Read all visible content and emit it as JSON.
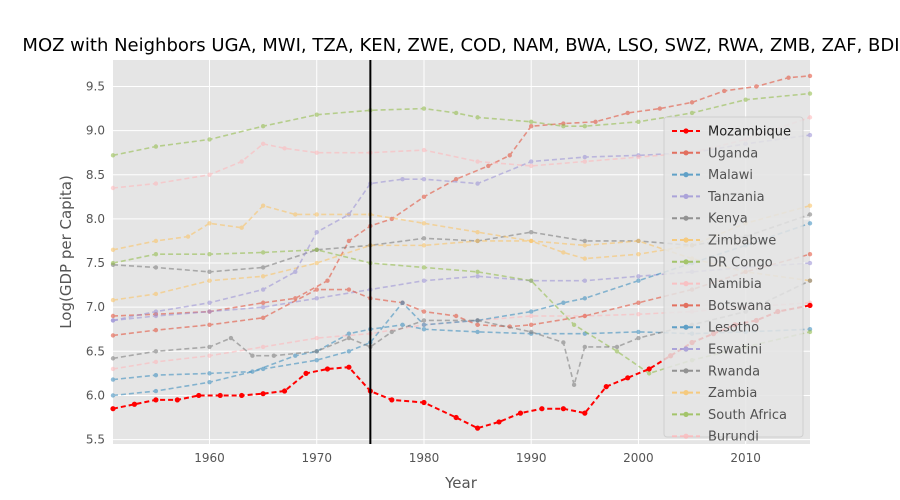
{
  "chart_data": {
    "type": "line",
    "title": "MOZ with Neighbors UGA, MWI, TZA, KEN, ZWE, COD, NAM, BWA, LSO, SWZ, RWA, ZMB, ZAF, BDI",
    "xlabel": "Year",
    "ylabel": "Log(GDP per Capita)",
    "xlim": [
      1951,
      2016
    ],
    "ylim": [
      5.45,
      9.8
    ],
    "xticks": [
      1960,
      1970,
      1980,
      1990,
      2000,
      2010
    ],
    "yticks": [
      5.5,
      6.0,
      6.5,
      7.0,
      7.5,
      8.0,
      8.5,
      9.0,
      9.5
    ],
    "vline": 1975,
    "grid": true,
    "legend_position": "right",
    "series": [
      {
        "name": "Mozambique",
        "color": "#ff0000",
        "highlight": true,
        "x": [
          1951,
          1953,
          1955,
          1957,
          1959,
          1961,
          1963,
          1965,
          1967,
          1969,
          1971,
          1973,
          1975,
          1977,
          1980,
          1983,
          1985,
          1987,
          1989,
          1991,
          1993,
          1995,
          1997,
          1999,
          2001,
          2003,
          2005,
          2007,
          2009,
          2011,
          2013,
          2016
        ],
        "y": [
          5.85,
          5.9,
          5.95,
          5.95,
          6.0,
          6.0,
          6.0,
          6.02,
          6.05,
          6.25,
          6.3,
          6.32,
          6.05,
          5.95,
          5.92,
          5.75,
          5.63,
          5.7,
          5.8,
          5.85,
          5.85,
          5.8,
          6.1,
          6.2,
          6.3,
          6.45,
          6.6,
          6.7,
          6.8,
          6.85,
          6.95,
          7.02
        ]
      },
      {
        "name": "Uganda",
        "color": "#e24a33",
        "x": [
          1951,
          1955,
          1960,
          1965,
          1968,
          1971,
          1973,
          1975,
          1977,
          1980,
          1983,
          1986,
          1988,
          1990,
          1993,
          1996,
          1999,
          2002,
          2005,
          2008,
          2011,
          2014,
          2016
        ],
        "y": [
          6.9,
          6.92,
          6.95,
          7.05,
          7.1,
          7.3,
          7.75,
          7.92,
          8.0,
          8.25,
          8.45,
          8.6,
          8.72,
          9.05,
          9.08,
          9.1,
          9.2,
          9.25,
          9.32,
          9.45,
          9.5,
          9.6,
          9.62
        ]
      },
      {
        "name": "Malawi",
        "color": "#348abd",
        "x": [
          1951,
          1955,
          1960,
          1964,
          1968,
          1970,
          1973,
          1975,
          1978,
          1980,
          1985,
          1990,
          1995,
          2000,
          2005,
          2010,
          2016
        ],
        "y": [
          6.18,
          6.23,
          6.25,
          6.27,
          6.45,
          6.5,
          6.7,
          6.75,
          6.8,
          6.75,
          6.72,
          6.7,
          6.7,
          6.72,
          6.7,
          6.72,
          6.75
        ]
      },
      {
        "name": "Tanzania",
        "color": "#988ed5",
        "x": [
          1951,
          1955,
          1960,
          1965,
          1970,
          1975,
          1980,
          1985,
          1990,
          1995,
          2000,
          2005,
          2010,
          2016
        ],
        "y": [
          6.85,
          6.9,
          6.95,
          7.0,
          7.1,
          7.2,
          7.3,
          7.35,
          7.3,
          7.3,
          7.35,
          7.4,
          7.45,
          7.5
        ]
      },
      {
        "name": "Kenya",
        "color": "#777777",
        "x": [
          1951,
          1955,
          1960,
          1965,
          1970,
          1975,
          1980,
          1985,
          1990,
          1995,
          2000,
          2005,
          2010,
          2016
        ],
        "y": [
          7.48,
          7.45,
          7.4,
          7.45,
          7.65,
          7.7,
          7.78,
          7.75,
          7.85,
          7.75,
          7.75,
          7.7,
          7.8,
          8.05
        ]
      },
      {
        "name": "Zimbabwe",
        "color": "#fbc15e",
        "x": [
          1951,
          1955,
          1960,
          1965,
          1970,
          1975,
          1980,
          1985,
          1990,
          1995,
          2000,
          2005,
          2010,
          2016
        ],
        "y": [
          7.08,
          7.15,
          7.3,
          7.35,
          7.5,
          7.7,
          7.7,
          7.75,
          7.75,
          7.7,
          7.75,
          7.55,
          7.4,
          7.3
        ]
      },
      {
        "name": "DR Congo",
        "color": "#8eba42",
        "x": [
          1951,
          1955,
          1960,
          1965,
          1970,
          1975,
          1980,
          1985,
          1990,
          1994,
          1998,
          2001,
          2005,
          2010,
          2016
        ],
        "y": [
          7.5,
          7.6,
          7.6,
          7.62,
          7.65,
          7.5,
          7.45,
          7.4,
          7.3,
          6.8,
          6.5,
          6.25,
          6.4,
          6.55,
          6.72
        ]
      },
      {
        "name": "Namibia",
        "color": "#ffb5b8",
        "x": [
          1951,
          1955,
          1960,
          1965,
          1970,
          1975,
          1980,
          1985,
          1990,
          1995,
          2000,
          2005,
          2010,
          2016
        ],
        "y": [
          6.3,
          6.38,
          6.45,
          6.55,
          6.65,
          6.7,
          6.8,
          6.85,
          6.9,
          6.9,
          6.92,
          6.95,
          7.0,
          7.05
        ]
      },
      {
        "name": "Botswana",
        "color": "#e24a33",
        "x": [
          1951,
          1955,
          1960,
          1965,
          1970,
          1973,
          1975,
          1978,
          1980,
          1983,
          1985,
          1988,
          1990,
          1995,
          2000,
          2005,
          2010,
          2016
        ],
        "y": [
          6.68,
          6.74,
          6.8,
          6.88,
          7.2,
          7.2,
          7.1,
          7.05,
          6.95,
          6.9,
          6.8,
          6.78,
          6.8,
          6.9,
          7.05,
          7.2,
          7.4,
          7.6
        ]
      },
      {
        "name": "Lesotho",
        "color": "#348abd",
        "x": [
          1951,
          1955,
          1960,
          1965,
          1970,
          1973,
          1975,
          1978,
          1980,
          1985,
          1990,
          1993,
          1995,
          2000,
          2005,
          2010,
          2016
        ],
        "y": [
          6.0,
          6.05,
          6.15,
          6.3,
          6.4,
          6.5,
          6.6,
          7.05,
          6.8,
          6.85,
          6.95,
          7.05,
          7.1,
          7.3,
          7.5,
          7.7,
          7.95
        ]
      },
      {
        "name": "Eswatini",
        "color": "#988ed5",
        "x": [
          1951,
          1955,
          1960,
          1965,
          1968,
          1970,
          1973,
          1975,
          1978,
          1980,
          1985,
          1990,
          1995,
          2000,
          2005,
          2010,
          2016
        ],
        "y": [
          6.85,
          6.95,
          7.05,
          7.2,
          7.4,
          7.85,
          8.05,
          8.4,
          8.45,
          8.45,
          8.4,
          8.65,
          8.7,
          8.72,
          8.75,
          8.85,
          8.95
        ]
      },
      {
        "name": "Rwanda",
        "color": "#777777",
        "x": [
          1951,
          1955,
          1960,
          1962,
          1964,
          1966,
          1970,
          1973,
          1975,
          1977,
          1980,
          1985,
          1990,
          1993,
          1994,
          1995,
          1998,
          2000,
          2005,
          2010,
          2016
        ],
        "y": [
          6.42,
          6.5,
          6.55,
          6.65,
          6.45,
          6.45,
          6.5,
          6.65,
          6.55,
          6.72,
          6.85,
          6.85,
          6.72,
          6.6,
          6.12,
          6.55,
          6.55,
          6.65,
          6.8,
          6.95,
          7.3
        ]
      },
      {
        "name": "Zambia",
        "color": "#fbc15e",
        "x": [
          1951,
          1955,
          1958,
          1960,
          1963,
          1965,
          1968,
          1970,
          1975,
          1980,
          1985,
          1990,
          1993,
          1995,
          2000,
          2005,
          2010,
          2016
        ],
        "y": [
          7.65,
          7.75,
          7.8,
          7.95,
          7.9,
          8.15,
          8.05,
          8.05,
          8.05,
          7.95,
          7.85,
          7.75,
          7.62,
          7.55,
          7.6,
          7.7,
          7.95,
          8.15
        ]
      },
      {
        "name": "South Africa",
        "color": "#8eba42",
        "x": [
          1951,
          1955,
          1960,
          1965,
          1970,
          1975,
          1980,
          1983,
          1985,
          1990,
          1993,
          1995,
          2000,
          2005,
          2010,
          2016
        ],
        "y": [
          8.72,
          8.82,
          8.9,
          9.05,
          9.18,
          9.23,
          9.25,
          9.2,
          9.15,
          9.1,
          9.05,
          9.05,
          9.1,
          9.2,
          9.35,
          9.42
        ]
      },
      {
        "name": "Burundi",
        "color": "#ffb5b8",
        "x": [
          1951,
          1955,
          1960,
          1963,
          1965,
          1967,
          1970,
          1975,
          1980,
          1985,
          1990,
          1995,
          2000,
          2005,
          2010,
          2016
        ],
        "y": [
          8.35,
          8.4,
          8.5,
          8.65,
          8.85,
          8.8,
          8.75,
          8.75,
          8.78,
          8.65,
          8.6,
          8.65,
          8.7,
          8.75,
          8.9,
          9.15
        ]
      }
    ]
  }
}
